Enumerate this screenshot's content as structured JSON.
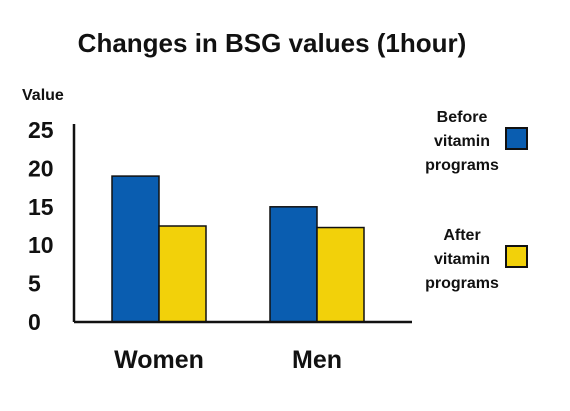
{
  "chart_data": {
    "type": "bar",
    "title": "Changes in BSG values (1hour)",
    "ylabel": "Value",
    "xlabel": "",
    "ylim": [
      0,
      25
    ],
    "yticks": [
      0,
      5,
      10,
      15,
      20,
      25
    ],
    "categories": [
      "Women",
      "Men"
    ],
    "series": [
      {
        "name": "Before vitamin programs",
        "legend_lines": [
          "Before",
          "vitamin",
          "programs"
        ],
        "color": "#0a5db0",
        "values": [
          19,
          15
        ]
      },
      {
        "name": "After vitamin programs",
        "legend_lines": [
          "After",
          "vitamin",
          "programs"
        ],
        "color": "#f2d10a",
        "values": [
          12.5,
          12.3
        ]
      }
    ],
    "grid": false,
    "legend_position": "right"
  }
}
